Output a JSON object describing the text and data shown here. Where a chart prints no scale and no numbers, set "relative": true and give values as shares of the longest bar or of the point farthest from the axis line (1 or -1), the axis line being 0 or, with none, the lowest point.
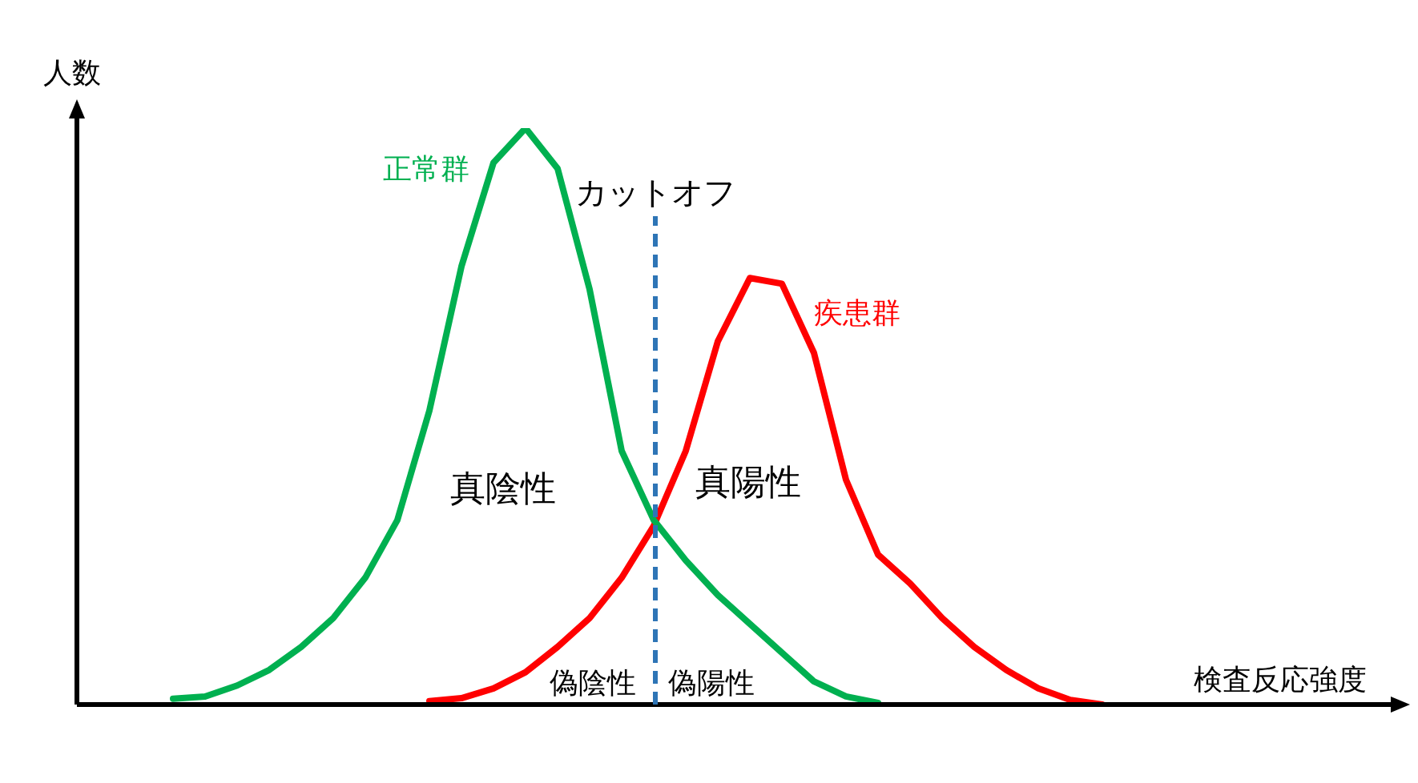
{
  "chart_data": {
    "type": "line",
    "relative": true,
    "xlabel": "検査反応強度",
    "ylabel": "人数",
    "legend": false,
    "marker": "none",
    "line_style": "solid",
    "categories": [
      null,
      null,
      null,
      null,
      null,
      null,
      null,
      null,
      null,
      null,
      null,
      null,
      null,
      null,
      null,
      null,
      null,
      null,
      null,
      null,
      null,
      null,
      null,
      null,
      null,
      null,
      null,
      null,
      null,
      null,
      null,
      null,
      null,
      null,
      null,
      null,
      null,
      null,
      null,
      null,
      null,
      null
    ],
    "series": [
      {
        "name": "正常群",
        "color": "#00b050",
        "values": [
          null,
          null,
          null,
          0.01,
          0.014,
          0.033,
          0.06,
          0.1,
          0.15,
          0.22,
          0.32,
          0.51,
          0.76,
          0.94,
          1,
          0.93,
          0.72,
          0.44,
          0.32,
          0.25,
          0.19,
          0.14,
          0.09,
          0.04,
          0.014,
          0.003,
          null,
          null,
          null,
          null,
          null,
          null,
          null,
          null,
          null,
          null,
          null,
          null,
          null,
          null,
          null,
          null
        ]
      },
      {
        "name": "疾患群",
        "color": "#ff0000",
        "values": [
          null,
          null,
          null,
          null,
          null,
          null,
          null,
          null,
          null,
          null,
          null,
          0.006,
          0.011,
          0.028,
          0.056,
          0.1,
          0.15,
          0.22,
          0.31,
          0.44,
          0.63,
          0.74,
          0.73,
          0.61,
          0.39,
          0.26,
          0.21,
          0.15,
          0.1,
          0.06,
          0.028,
          0.008,
          0,
          null,
          null,
          null,
          null,
          null,
          null,
          null,
          null,
          null
        ]
      }
    ],
    "ref_lines": [
      {
        "axis": "x",
        "label": "カットオフ",
        "color": "#2e75b6",
        "line_style": "dashed"
      }
    ],
    "annotations": [
      "真陰性",
      "真陽性",
      "偽陰性",
      "偽陽性"
    ]
  }
}
